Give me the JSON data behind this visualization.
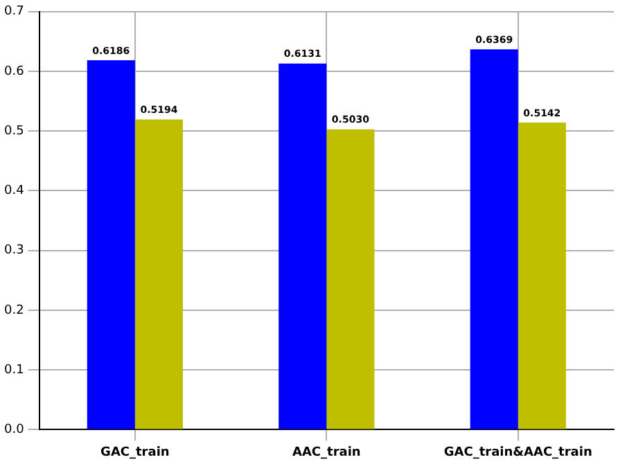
{
  "chart_data": {
    "type": "bar",
    "categories": [
      "GAC_train",
      "AAC_train",
      "GAC_train&AAC_train"
    ],
    "series": [
      {
        "color": "#0000ff",
        "values": [
          0.6186,
          0.6131,
          0.6369
        ],
        "value_labels": [
          "0.6186",
          "0.6131",
          "0.6369"
        ]
      },
      {
        "color": "#bfbf00",
        "values": [
          0.5194,
          0.503,
          0.5142
        ],
        "value_labels": [
          "0.5194",
          "0.5030",
          "0.5142"
        ]
      }
    ],
    "ylim": [
      0,
      0.7
    ],
    "yticks": [
      {
        "value": 0,
        "label": "0.0"
      },
      {
        "value": 0.1,
        "label": "0.1"
      },
      {
        "value": 0.2,
        "label": "0.2"
      },
      {
        "value": 0.3,
        "label": "0.3"
      },
      {
        "value": 0.4,
        "label": "0.4"
      },
      {
        "value": 0.5,
        "label": "0.5"
      },
      {
        "value": 0.6,
        "label": "0.6"
      },
      {
        "value": 0.7,
        "label": "0.7"
      }
    ],
    "grid": true,
    "legend": false
  }
}
